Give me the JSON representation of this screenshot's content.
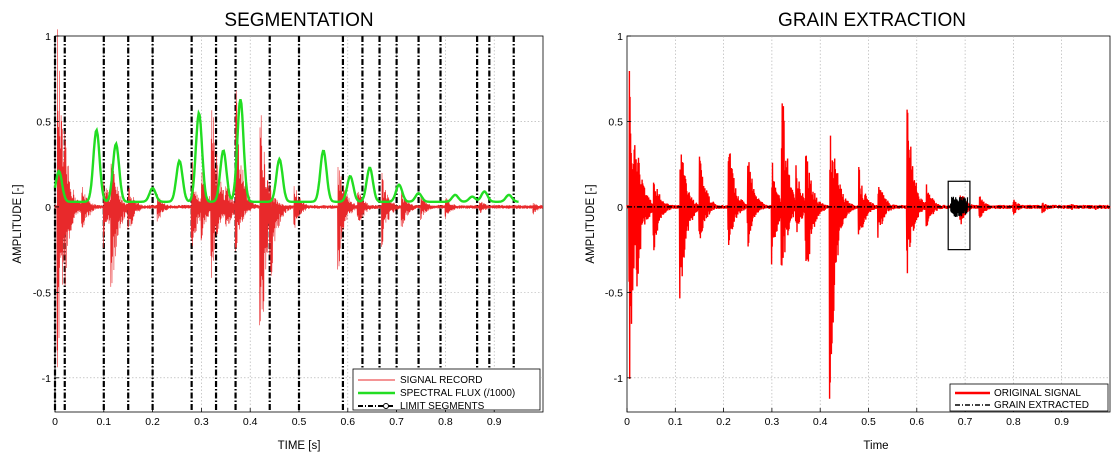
{
  "chart_data": [
    {
      "type": "line",
      "title": "SEGMENTATION",
      "xlabel": "TIME [s]",
      "ylabel": "AMPLITUDE [-]",
      "xlim": [
        0,
        1.0
      ],
      "ylim": [
        -1.2,
        1.0
      ],
      "xticks": [
        0,
        0.1,
        0.2,
        0.3,
        0.4,
        0.5,
        0.6,
        0.7,
        0.8,
        0.9
      ],
      "xtick_labels": [
        "0",
        "0.1",
        "0.2",
        "0.3",
        "0.4",
        "0.5",
        "0.6",
        "0.7",
        "0.8",
        "0.9"
      ],
      "yticks": [
        1,
        0.5,
        0,
        -0.5,
        -1
      ],
      "ytick_labels": [
        "1",
        "0.5",
        "0",
        "-0.5",
        "-1"
      ],
      "grid": true,
      "legend_position": "bottom-right",
      "signal_bursts": [
        {
          "t": 0.005,
          "amp": 1.1,
          "neg": 1.15
        },
        {
          "t": 0.02,
          "amp": 0.45,
          "neg": 0.5
        },
        {
          "t": 0.055,
          "amp": 0.15,
          "neg": 0.2
        },
        {
          "t": 0.1,
          "amp": 0.2,
          "neg": 0.25
        },
        {
          "t": 0.115,
          "amp": 0.35,
          "neg": 0.68
        },
        {
          "t": 0.15,
          "amp": 0.15,
          "neg": 0.2
        },
        {
          "t": 0.21,
          "amp": 0.08,
          "neg": 0.1
        },
        {
          "t": 0.28,
          "amp": 0.3,
          "neg": 0.35
        },
        {
          "t": 0.3,
          "amp": 0.25,
          "neg": 0.2
        },
        {
          "t": 0.32,
          "amp": 0.82,
          "neg": 0.5
        },
        {
          "t": 0.35,
          "amp": 0.15,
          "neg": 0.2
        },
        {
          "t": 0.37,
          "amp": 0.78,
          "neg": 0.3
        },
        {
          "t": 0.42,
          "amp": 0.68,
          "neg": 1.2
        },
        {
          "t": 0.44,
          "amp": 0.15,
          "neg": 0.6
        },
        {
          "t": 0.49,
          "amp": 0.15,
          "neg": 0.15
        },
        {
          "t": 0.58,
          "amp": 0.35,
          "neg": 0.42
        },
        {
          "t": 0.62,
          "amp": 0.12,
          "neg": 0.15
        },
        {
          "t": 0.67,
          "amp": 0.2,
          "neg": 0.25
        },
        {
          "t": 0.71,
          "amp": 0.1,
          "neg": 0.15
        },
        {
          "t": 0.75,
          "amp": 0.08,
          "neg": 0.08
        },
        {
          "t": 0.8,
          "amp": 0.07,
          "neg": 0.08
        },
        {
          "t": 0.87,
          "amp": 0.05,
          "neg": 0.05
        },
        {
          "t": 0.98,
          "amp": 0.03,
          "neg": 0.05
        }
      ],
      "spectral_flux_peaks": [
        {
          "t": 0.008,
          "h": 0.18
        },
        {
          "t": 0.085,
          "h": 0.42
        },
        {
          "t": 0.125,
          "h": 0.34
        },
        {
          "t": 0.2,
          "h": 0.08
        },
        {
          "t": 0.255,
          "h": 0.24
        },
        {
          "t": 0.295,
          "h": 0.52
        },
        {
          "t": 0.345,
          "h": 0.3
        },
        {
          "t": 0.38,
          "h": 0.6
        },
        {
          "t": 0.46,
          "h": 0.25
        },
        {
          "t": 0.55,
          "h": 0.3
        },
        {
          "t": 0.605,
          "h": 0.15
        },
        {
          "t": 0.645,
          "h": 0.2
        },
        {
          "t": 0.705,
          "h": 0.1
        },
        {
          "t": 0.745,
          "h": 0.05
        },
        {
          "t": 0.82,
          "h": 0.04
        },
        {
          "t": 0.855,
          "h": 0.03
        },
        {
          "t": 0.88,
          "h": 0.06
        },
        {
          "t": 0.93,
          "h": 0.04
        }
      ],
      "flux_baseline": 0.03,
      "limit_segments": [
        0.0,
        0.02,
        0.1,
        0.15,
        0.2,
        0.28,
        0.33,
        0.37,
        0.44,
        0.5,
        0.59,
        0.63,
        0.665,
        0.7,
        0.745,
        0.79,
        0.865,
        0.89,
        0.94
      ],
      "series": [
        {
          "name": "SIGNAL RECORD",
          "color": "#e8292b",
          "style": "solid-thin"
        },
        {
          "name": "SPECTRAL FLUX (/1000)",
          "color": "#22dd22",
          "style": "solid-thick"
        },
        {
          "name": "LIMIT SEGMENTS",
          "color": "#000000",
          "style": "dash-dot-marker"
        }
      ]
    },
    {
      "type": "line",
      "title": "GRAIN EXTRACTION",
      "xlabel": "Time",
      "ylabel": "AMPLITUDE [-]",
      "xlim": [
        0,
        1.0
      ],
      "ylim": [
        -1.2,
        1.0
      ],
      "xticks": [
        0,
        0.1,
        0.2,
        0.3,
        0.4,
        0.5,
        0.6,
        0.7,
        0.8,
        0.9
      ],
      "xtick_labels": [
        "0",
        "0.1",
        "0.2",
        "0.3",
        "0.4",
        "0.5",
        "0.6",
        "0.7",
        "0.8",
        "0.9"
      ],
      "yticks": [
        1,
        0.5,
        0,
        -0.5,
        -1
      ],
      "ytick_labels": [
        "1",
        "0.5",
        "0",
        "-0.5",
        "-1"
      ],
      "grid": true,
      "legend_position": "bottom-right",
      "signal_bursts": [
        {
          "t": 0.005,
          "amp": 0.98,
          "neg": 1.1
        },
        {
          "t": 0.02,
          "amp": 0.45,
          "neg": 0.55
        },
        {
          "t": 0.055,
          "amp": 0.22,
          "neg": 0.3
        },
        {
          "t": 0.11,
          "amp": 0.45,
          "neg": 0.66
        },
        {
          "t": 0.15,
          "amp": 0.35,
          "neg": 0.25
        },
        {
          "t": 0.21,
          "amp": 0.45,
          "neg": 0.3
        },
        {
          "t": 0.25,
          "amp": 0.35,
          "neg": 0.25
        },
        {
          "t": 0.3,
          "amp": 0.3,
          "neg": 0.35
        },
        {
          "t": 0.32,
          "amp": 0.85,
          "neg": 0.5
        },
        {
          "t": 0.35,
          "amp": 0.25,
          "neg": 0.2
        },
        {
          "t": 0.37,
          "amp": 0.4,
          "neg": 0.55
        },
        {
          "t": 0.42,
          "amp": 0.6,
          "neg": 1.2
        },
        {
          "t": 0.43,
          "amp": 0.35,
          "neg": 0.3
        },
        {
          "t": 0.48,
          "amp": 0.25,
          "neg": 0.25
        },
        {
          "t": 0.52,
          "amp": 0.2,
          "neg": 0.2
        },
        {
          "t": 0.58,
          "amp": 0.7,
          "neg": 0.42
        },
        {
          "t": 0.62,
          "amp": 0.15,
          "neg": 0.15
        },
        {
          "t": 0.69,
          "amp": 0.12,
          "neg": 0.12
        },
        {
          "t": 0.73,
          "amp": 0.07,
          "neg": 0.08
        },
        {
          "t": 0.8,
          "amp": 0.05,
          "neg": 0.05
        },
        {
          "t": 0.86,
          "amp": 0.03,
          "neg": 0.04
        },
        {
          "t": 0.92,
          "amp": 0.02,
          "neg": 0.02
        },
        {
          "t": 0.97,
          "amp": 0.01,
          "neg": 0.02
        }
      ],
      "grain_window": [
        0.67,
        0.705
      ],
      "grain_box_y": [
        -0.25,
        0.15
      ],
      "series": [
        {
          "name": "ORIGINAL SIGNAL",
          "color": "#ff0000",
          "style": "solid-thick"
        },
        {
          "name": "GRAIN EXTRACTED",
          "color": "#000000",
          "style": "dash-dot"
        }
      ]
    }
  ]
}
